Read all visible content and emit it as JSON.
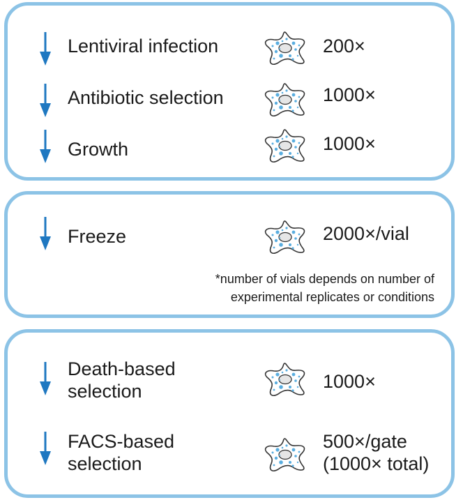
{
  "colors": {
    "panel_border": "#8cc3e6",
    "arrow": "#1f78c1",
    "cell_dots": "#5aaee0",
    "cell_outline": "#333333"
  },
  "icons": {
    "step_arrow": "down-arrow-icon",
    "cell": "cell-icon"
  },
  "panels": [
    {
      "steps": [
        {
          "label_lines": [
            "Lentiviral infection"
          ],
          "count_lines": [
            "200×"
          ]
        },
        {
          "label_lines": [
            "Antibiotic selection"
          ],
          "count_lines": [
            "1000×"
          ]
        },
        {
          "label_lines": [
            "Growth"
          ],
          "count_lines": [
            "1000×"
          ]
        }
      ]
    },
    {
      "steps": [
        {
          "label_lines": [
            "Freeze"
          ],
          "count_lines": [
            "2000×/vial"
          ]
        }
      ],
      "note_lines": [
        "*number of vials depends on number of",
        "experimental replicates or conditions"
      ]
    },
    {
      "steps": [
        {
          "label_lines": [
            "Death-based",
            "selection"
          ],
          "count_lines": [
            "1000×"
          ]
        },
        {
          "label_lines": [
            "FACS-based",
            "selection"
          ],
          "count_lines": [
            "500×/gate",
            "(1000× total)"
          ]
        }
      ]
    }
  ]
}
